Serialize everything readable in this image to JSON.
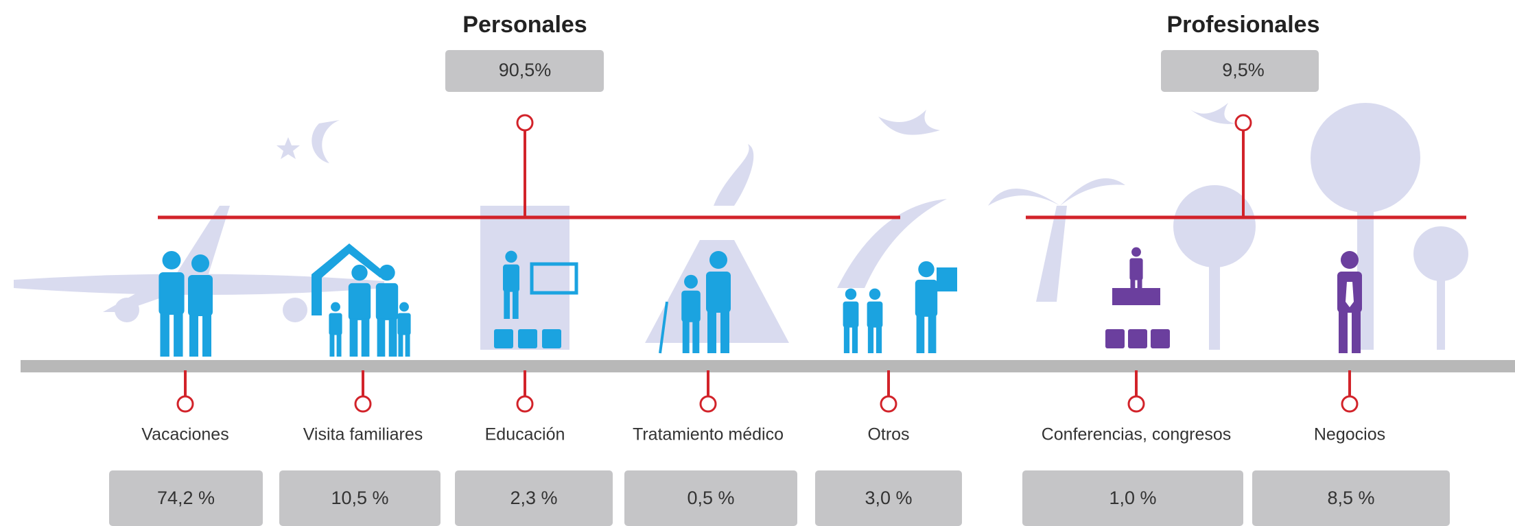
{
  "groups": [
    {
      "title": "Personales",
      "value": "90,5%",
      "items": [
        {
          "label": "Vacaciones",
          "value": "74,2 %"
        },
        {
          "label": "Visita familiares",
          "value": "10,5 %"
        },
        {
          "label": "Educación",
          "value": "2,3 %"
        },
        {
          "label": "Tratamiento médico",
          "value": "0,5 %"
        },
        {
          "label": "Otros",
          "value": "3,0 %"
        }
      ]
    },
    {
      "title": "Profesionales",
      "value": "9,5%",
      "items": [
        {
          "label": "Conferencias, congresos",
          "value": "1,0 %"
        },
        {
          "label": "Negocios",
          "value": "8,5 %"
        }
      ]
    }
  ]
}
